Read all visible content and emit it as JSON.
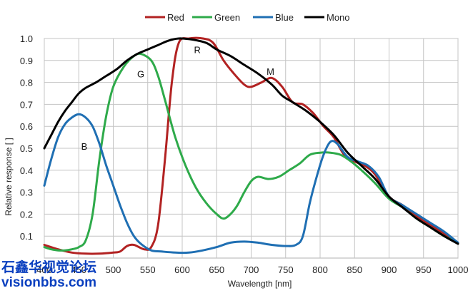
{
  "chart_data": {
    "type": "line",
    "xlabel": "Wavelength [nm]",
    "ylabel": "Relative response [ ]",
    "xlim": [
      400,
      1000
    ],
    "ylim": [
      0,
      1.0
    ],
    "x_ticks": [
      "400",
      "450",
      "500",
      "550",
      "600",
      "650",
      "700",
      "750",
      "800",
      "850",
      "900",
      "950",
      "1000"
    ],
    "y_ticks": [
      "0.1",
      "0.2",
      "0.3",
      "0.4",
      "0.5",
      "0.6",
      "0.7",
      "0.8",
      "0.9",
      "1.0"
    ],
    "grid": true,
    "legend_position": "top",
    "series": [
      {
        "name": "Red",
        "color": "#b22222",
        "points": [
          [
            400,
            0.06
          ],
          [
            420,
            0.04
          ],
          [
            440,
            0.025
          ],
          [
            460,
            0.02
          ],
          [
            480,
            0.02
          ],
          [
            500,
            0.025
          ],
          [
            510,
            0.03
          ],
          [
            520,
            0.055
          ],
          [
            530,
            0.06
          ],
          [
            545,
            0.04
          ],
          [
            555,
            0.05
          ],
          [
            565,
            0.15
          ],
          [
            575,
            0.45
          ],
          [
            585,
            0.8
          ],
          [
            595,
            0.98
          ],
          [
            610,
            1.0
          ],
          [
            630,
            1.0
          ],
          [
            645,
            0.98
          ],
          [
            660,
            0.9
          ],
          [
            675,
            0.84
          ],
          [
            690,
            0.79
          ],
          [
            700,
            0.78
          ],
          [
            715,
            0.8
          ],
          [
            730,
            0.82
          ],
          [
            745,
            0.78
          ],
          [
            760,
            0.71
          ],
          [
            775,
            0.7
          ],
          [
            790,
            0.66
          ],
          [
            805,
            0.6
          ],
          [
            820,
            0.55
          ],
          [
            835,
            0.47
          ],
          [
            850,
            0.44
          ],
          [
            865,
            0.42
          ],
          [
            880,
            0.38
          ],
          [
            900,
            0.28
          ],
          [
            920,
            0.24
          ],
          [
            940,
            0.19
          ],
          [
            960,
            0.15
          ],
          [
            980,
            0.11
          ],
          [
            1000,
            0.07
          ]
        ]
      },
      {
        "name": "Green",
        "color": "#2eaa4a",
        "points": [
          [
            400,
            0.05
          ],
          [
            410,
            0.04
          ],
          [
            420,
            0.035
          ],
          [
            430,
            0.035
          ],
          [
            440,
            0.04
          ],
          [
            450,
            0.05
          ],
          [
            460,
            0.08
          ],
          [
            470,
            0.2
          ],
          [
            480,
            0.45
          ],
          [
            490,
            0.65
          ],
          [
            500,
            0.78
          ],
          [
            515,
            0.87
          ],
          [
            530,
            0.92
          ],
          [
            540,
            0.93
          ],
          [
            555,
            0.9
          ],
          [
            565,
            0.83
          ],
          [
            575,
            0.72
          ],
          [
            590,
            0.55
          ],
          [
            605,
            0.42
          ],
          [
            620,
            0.32
          ],
          [
            635,
            0.25
          ],
          [
            650,
            0.2
          ],
          [
            660,
            0.18
          ],
          [
            670,
            0.2
          ],
          [
            680,
            0.24
          ],
          [
            690,
            0.3
          ],
          [
            700,
            0.35
          ],
          [
            710,
            0.37
          ],
          [
            725,
            0.36
          ],
          [
            740,
            0.37
          ],
          [
            755,
            0.4
          ],
          [
            770,
            0.43
          ],
          [
            785,
            0.47
          ],
          [
            800,
            0.48
          ],
          [
            815,
            0.48
          ],
          [
            830,
            0.47
          ],
          [
            845,
            0.44
          ],
          [
            860,
            0.4
          ],
          [
            880,
            0.34
          ],
          [
            900,
            0.27
          ],
          [
            920,
            0.23
          ],
          [
            940,
            0.18
          ],
          [
            960,
            0.14
          ],
          [
            980,
            0.1
          ],
          [
            1000,
            0.07
          ]
        ]
      },
      {
        "name": "Blue",
        "color": "#1f6fb3",
        "points": [
          [
            400,
            0.33
          ],
          [
            410,
            0.45
          ],
          [
            420,
            0.55
          ],
          [
            430,
            0.61
          ],
          [
            440,
            0.64
          ],
          [
            450,
            0.655
          ],
          [
            460,
            0.64
          ],
          [
            470,
            0.6
          ],
          [
            480,
            0.52
          ],
          [
            490,
            0.42
          ],
          [
            500,
            0.33
          ],
          [
            510,
            0.24
          ],
          [
            520,
            0.16
          ],
          [
            530,
            0.1
          ],
          [
            540,
            0.065
          ],
          [
            555,
            0.035
          ],
          [
            570,
            0.03
          ],
          [
            590,
            0.025
          ],
          [
            610,
            0.025
          ],
          [
            630,
            0.035
          ],
          [
            650,
            0.05
          ],
          [
            670,
            0.07
          ],
          [
            690,
            0.075
          ],
          [
            710,
            0.07
          ],
          [
            730,
            0.06
          ],
          [
            750,
            0.055
          ],
          [
            765,
            0.06
          ],
          [
            775,
            0.1
          ],
          [
            785,
            0.25
          ],
          [
            795,
            0.37
          ],
          [
            805,
            0.47
          ],
          [
            815,
            0.53
          ],
          [
            825,
            0.52
          ],
          [
            840,
            0.46
          ],
          [
            855,
            0.44
          ],
          [
            870,
            0.42
          ],
          [
            885,
            0.37
          ],
          [
            900,
            0.28
          ],
          [
            920,
            0.24
          ],
          [
            940,
            0.2
          ],
          [
            960,
            0.16
          ],
          [
            980,
            0.12
          ],
          [
            1000,
            0.07
          ]
        ]
      },
      {
        "name": "Mono",
        "color": "#000000",
        "points": [
          [
            400,
            0.5
          ],
          [
            410,
            0.56
          ],
          [
            420,
            0.62
          ],
          [
            430,
            0.67
          ],
          [
            440,
            0.71
          ],
          [
            450,
            0.75
          ],
          [
            460,
            0.775
          ],
          [
            475,
            0.8
          ],
          [
            490,
            0.83
          ],
          [
            505,
            0.86
          ],
          [
            520,
            0.9
          ],
          [
            535,
            0.93
          ],
          [
            550,
            0.95
          ],
          [
            565,
            0.97
          ],
          [
            580,
            0.99
          ],
          [
            595,
            1.0
          ],
          [
            615,
            0.995
          ],
          [
            635,
            0.98
          ],
          [
            650,
            0.95
          ],
          [
            670,
            0.92
          ],
          [
            690,
            0.88
          ],
          [
            710,
            0.84
          ],
          [
            730,
            0.79
          ],
          [
            745,
            0.74
          ],
          [
            760,
            0.71
          ],
          [
            780,
            0.67
          ],
          [
            800,
            0.62
          ],
          [
            820,
            0.56
          ],
          [
            840,
            0.48
          ],
          [
            860,
            0.42
          ],
          [
            880,
            0.36
          ],
          [
            900,
            0.28
          ],
          [
            920,
            0.23
          ],
          [
            940,
            0.18
          ],
          [
            960,
            0.14
          ],
          [
            980,
            0.1
          ],
          [
            1000,
            0.065
          ]
        ]
      }
    ],
    "annotations": [
      {
        "text": "R",
        "x": 622,
        "y": 0.95
      },
      {
        "text": "G",
        "x": 540,
        "y": 0.84
      },
      {
        "text": "B",
        "x": 458,
        "y": 0.51
      },
      {
        "text": "M",
        "x": 728,
        "y": 0.85
      }
    ]
  },
  "watermark": {
    "line1": "石鑫华视觉论坛",
    "line2": "visionbbs.com"
  }
}
